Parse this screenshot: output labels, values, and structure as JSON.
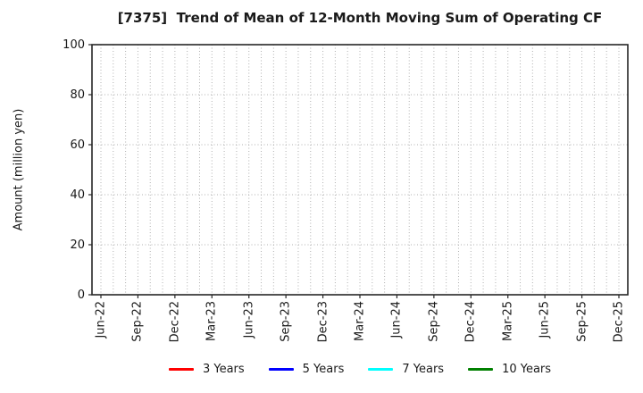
{
  "chart_data": {
    "type": "line",
    "title": "[7375]  Trend of Mean of 12-Month Moving Sum of Operating CF",
    "ylabel": "Amount (million yen)",
    "ylim": [
      0,
      100
    ],
    "yticks": [
      0,
      20,
      40,
      60,
      80,
      100
    ],
    "x_tick_labels": [
      "Jun-22",
      "Sep-22",
      "Dec-22",
      "Mar-23",
      "Jun-23",
      "Sep-23",
      "Dec-23",
      "Mar-24",
      "Jun-24",
      "Sep-24",
      "Dec-24",
      "Mar-25",
      "Jun-25",
      "Sep-25",
      "Dec-25"
    ],
    "x_minor_divisions_per_labeled_tick": 3,
    "grid": {
      "show": true,
      "line_style": "dotted",
      "color": "#b0b0b0"
    },
    "axes_frame_color": "#262626",
    "text_color": "#1a1a1a",
    "background_color": "#ffffff",
    "plot_empty": true,
    "legend": {
      "position": "bottom-center",
      "entries": [
        {
          "label": "3 Years",
          "color": "#ff0000"
        },
        {
          "label": "5 Years",
          "color": "#0000ff"
        },
        {
          "label": "7 Years",
          "color": "#00ffff"
        },
        {
          "label": "10 Years",
          "color": "#008000"
        }
      ]
    },
    "series": [
      {
        "name": "3 Years",
        "color": "#ff0000",
        "values": []
      },
      {
        "name": "5 Years",
        "color": "#0000ff",
        "values": []
      },
      {
        "name": "7 Years",
        "color": "#00ffff",
        "values": []
      },
      {
        "name": "10 Years",
        "color": "#008000",
        "values": []
      }
    ]
  }
}
